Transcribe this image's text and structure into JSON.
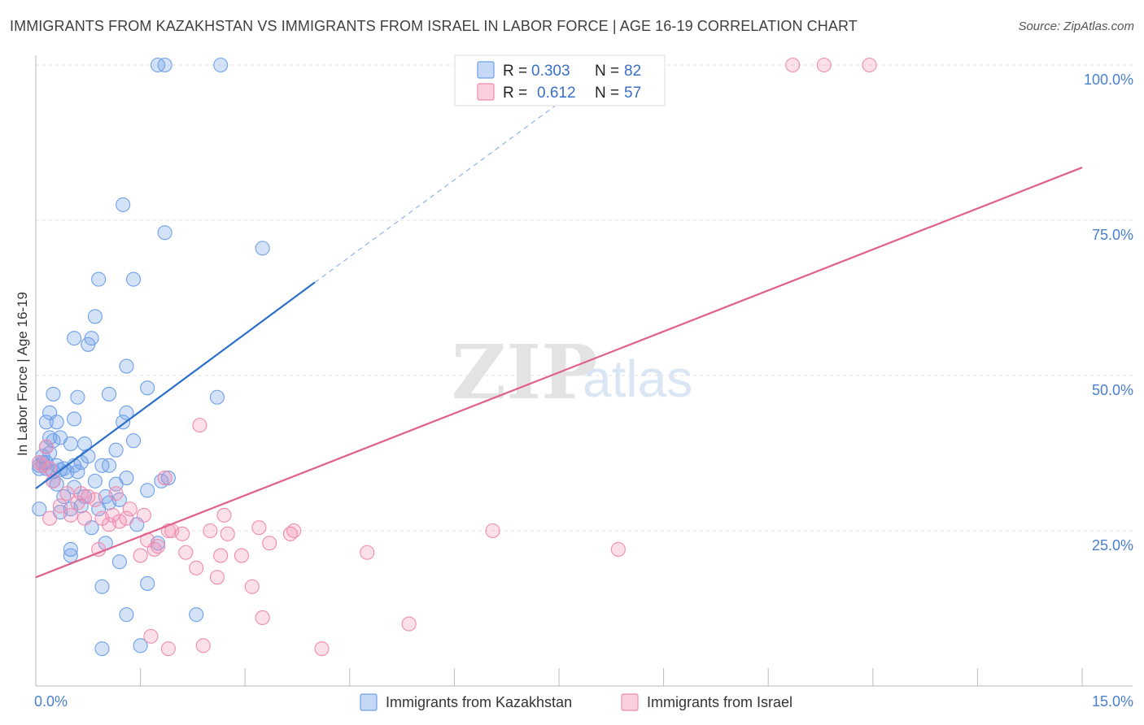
{
  "title": "IMMIGRANTS FROM KAZAKHSTAN VS IMMIGRANTS FROM ISRAEL IN LABOR FORCE | AGE 16-19 CORRELATION CHART",
  "source": "Source: ZipAtlas.com",
  "watermark": {
    "zip": "ZIP",
    "atlas": "atlas"
  },
  "colors": {
    "blue": "#6fa0e8",
    "blue_line": "#2a6fcc",
    "pink": "#f08cb0",
    "pink_line": "#e0608a",
    "axis_text": "#4a7fd0"
  },
  "legend": {
    "r_label": "R =",
    "n_label": "N =",
    "series": [
      {
        "name": "Immigrants from Kazakhstan",
        "r": "0.303",
        "n": "82"
      },
      {
        "name": "Immigrants from Israel",
        "r": "0.612",
        "n": "57"
      }
    ]
  },
  "chart_data": {
    "type": "scatter",
    "title": "IMMIGRANTS FROM KAZAKHSTAN VS IMMIGRANTS FROM ISRAEL IN LABOR FORCE | AGE 16-19 CORRELATION CHART",
    "xlabel": "",
    "ylabel": "In Labor Force | Age 16-19",
    "xlim": [
      0,
      15
    ],
    "ylim": [
      0,
      100
    ],
    "x_tick_labels": [
      "0.0%",
      "15.0%"
    ],
    "y_ticks": [
      25,
      50,
      75,
      100
    ],
    "y_tick_labels": [
      "25.0%",
      "50.0%",
      "75.0%",
      "100.0%"
    ],
    "series": [
      {
        "name": "Immigrants from Kazakhstan",
        "color": "#6fa0e8",
        "trend": {
          "x0": 0.0,
          "y0": 31.8,
          "x1": 4.0,
          "y1": 65.0,
          "dashed_to_x": 8.0,
          "dashed_to_y": 98.0
        },
        "points": [
          [
            1.75,
            100
          ],
          [
            1.85,
            100
          ],
          [
            2.65,
            100
          ],
          [
            1.25,
            77.5
          ],
          [
            1.85,
            73
          ],
          [
            3.25,
            70.5
          ],
          [
            0.9,
            65.5
          ],
          [
            1.4,
            65.5
          ],
          [
            0.85,
            59.5
          ],
          [
            0.55,
            56
          ],
          [
            0.8,
            56
          ],
          [
            0.75,
            55
          ],
          [
            1.3,
            51.5
          ],
          [
            0.25,
            47
          ],
          [
            0.6,
            46.5
          ],
          [
            1.05,
            47
          ],
          [
            1.6,
            48
          ],
          [
            2.6,
            46.5
          ],
          [
            0.2,
            44
          ],
          [
            1.3,
            44
          ],
          [
            0.55,
            43
          ],
          [
            0.3,
            42.5
          ],
          [
            0.15,
            42.5
          ],
          [
            1.25,
            42.5
          ],
          [
            0.2,
            40
          ],
          [
            0.35,
            40
          ],
          [
            0.25,
            39.5
          ],
          [
            0.5,
            39
          ],
          [
            0.7,
            39
          ],
          [
            1.4,
            39.5
          ],
          [
            0.15,
            38.5
          ],
          [
            1.15,
            38
          ],
          [
            0.75,
            37
          ],
          [
            0.1,
            36
          ],
          [
            0.05,
            35.5
          ],
          [
            0.3,
            35.5
          ],
          [
            0.55,
            35.5
          ],
          [
            0.4,
            35
          ],
          [
            0.25,
            34.5
          ],
          [
            0.65,
            36
          ],
          [
            0.95,
            35.5
          ],
          [
            1.05,
            35.5
          ],
          [
            0.05,
            35
          ],
          [
            0.15,
            35
          ],
          [
            0.35,
            34.8
          ],
          [
            0.45,
            34.5
          ],
          [
            1.3,
            33.5
          ],
          [
            1.9,
            33.5
          ],
          [
            1.8,
            33
          ],
          [
            0.3,
            32.5
          ],
          [
            0.55,
            32
          ],
          [
            1.6,
            31.5
          ],
          [
            0.4,
            30.5
          ],
          [
            0.7,
            30.5
          ],
          [
            1.0,
            30.5
          ],
          [
            1.2,
            30
          ],
          [
            1.05,
            29.5
          ],
          [
            0.65,
            29
          ],
          [
            0.5,
            28.5
          ],
          [
            0.35,
            28
          ],
          [
            0.9,
            28.5
          ],
          [
            0.05,
            28.5
          ],
          [
            1.45,
            26
          ],
          [
            0.8,
            25.5
          ],
          [
            1.0,
            23
          ],
          [
            1.75,
            23
          ],
          [
            0.5,
            22
          ],
          [
            0.5,
            21
          ],
          [
            1.2,
            20
          ],
          [
            0.95,
            16
          ],
          [
            1.6,
            16.5
          ],
          [
            1.3,
            11.5
          ],
          [
            2.3,
            11.5
          ],
          [
            0.95,
            6
          ],
          [
            1.5,
            6.5
          ],
          [
            0.2,
            37.5
          ],
          [
            0.1,
            37
          ],
          [
            0.15,
            36
          ],
          [
            0.6,
            34.5
          ],
          [
            0.85,
            33
          ],
          [
            0.25,
            33
          ],
          [
            1.15,
            32.5
          ]
        ]
      },
      {
        "name": "Immigrants from Israel",
        "color": "#f08cb0",
        "trend": {
          "x0": 0.0,
          "y0": 17.5,
          "x1": 15.0,
          "y1": 83.5
        },
        "points": [
          [
            10.85,
            100
          ],
          [
            11.3,
            100
          ],
          [
            11.95,
            100
          ],
          [
            0.15,
            38.5
          ],
          [
            0.05,
            36
          ],
          [
            0.1,
            35.5
          ],
          [
            0.2,
            35
          ],
          [
            2.35,
            42
          ],
          [
            1.85,
            33.5
          ],
          [
            0.45,
            31
          ],
          [
            0.75,
            30.5
          ],
          [
            1.15,
            31
          ],
          [
            0.35,
            29
          ],
          [
            0.6,
            29.5
          ],
          [
            0.85,
            30
          ],
          [
            1.35,
            28.5
          ],
          [
            0.2,
            27
          ],
          [
            0.5,
            27.5
          ],
          [
            0.7,
            27
          ],
          [
            0.95,
            27
          ],
          [
            1.05,
            26
          ],
          [
            1.2,
            26.5
          ],
          [
            1.55,
            27.5
          ],
          [
            2.7,
            27.5
          ],
          [
            3.2,
            25.5
          ],
          [
            3.7,
            25
          ],
          [
            3.65,
            24.5
          ],
          [
            2.1,
            24.5
          ],
          [
            1.95,
            25
          ],
          [
            2.5,
            25
          ],
          [
            2.75,
            24.5
          ],
          [
            1.6,
            23.5
          ],
          [
            1.75,
            22.5
          ],
          [
            3.35,
            23
          ],
          [
            0.9,
            22
          ],
          [
            1.7,
            22
          ],
          [
            2.15,
            21.5
          ],
          [
            1.5,
            21
          ],
          [
            2.65,
            21
          ],
          [
            2.95,
            21
          ],
          [
            4.75,
            21.5
          ],
          [
            6.55,
            25
          ],
          [
            8.35,
            22
          ],
          [
            2.3,
            19
          ],
          [
            2.6,
            17.5
          ],
          [
            3.1,
            16
          ],
          [
            3.25,
            11
          ],
          [
            5.35,
            10
          ],
          [
            1.65,
            8
          ],
          [
            1.9,
            6
          ],
          [
            2.4,
            6.5
          ],
          [
            4.1,
            6
          ],
          [
            1.1,
            27.5
          ],
          [
            1.3,
            27
          ],
          [
            0.25,
            33
          ],
          [
            0.65,
            31
          ],
          [
            1.9,
            25
          ]
        ]
      }
    ]
  },
  "axis": {
    "ylabel": "In Labor Force | Age 16-19",
    "x_min_label": "0.0%",
    "x_max_label": "15.0%"
  }
}
